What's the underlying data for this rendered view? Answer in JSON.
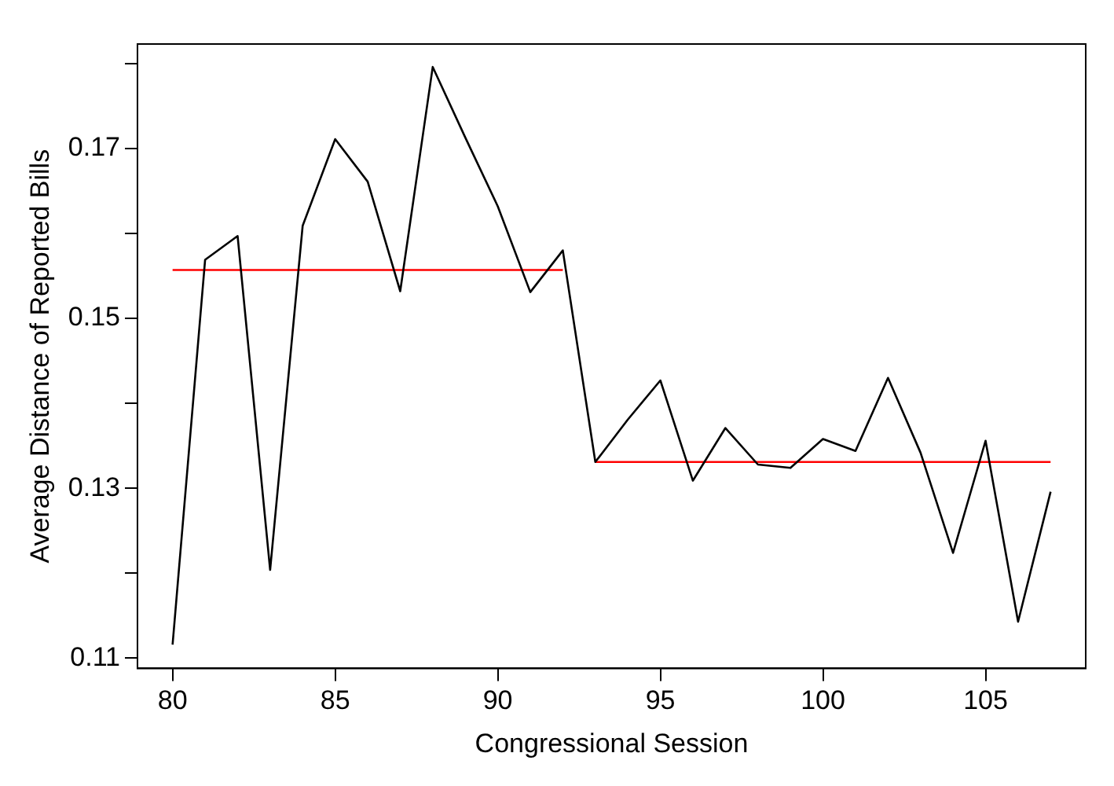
{
  "chart_data": {
    "type": "line",
    "xlabel": "Congressional Session",
    "ylabel": "Average Distance of Reported Bills",
    "xlim": [
      78.92,
      108.08
    ],
    "ylim": [
      0.1088,
      0.1823
    ],
    "xticks": [
      80,
      85,
      90,
      95,
      100,
      105
    ],
    "yticks": [
      0.11,
      {
        "value": 0.12,
        "label": null
      },
      0.13,
      {
        "value": 0.14,
        "label": null
      },
      0.15,
      {
        "value": 0.16,
        "label": null
      },
      0.17,
      {
        "value": 0.18,
        "label": null
      }
    ],
    "grid": false,
    "legend": false,
    "marker": "none",
    "line_style": "solid",
    "series": [
      {
        "color": "#000000",
        "x": [
          80,
          81,
          82,
          83,
          84,
          85,
          86,
          87,
          88,
          89,
          90,
          91,
          92,
          93,
          94,
          95,
          96,
          97,
          98,
          99,
          100,
          101,
          102,
          103,
          104,
          105,
          106,
          107
        ],
        "values": [
          0.1116,
          0.1569,
          0.1597,
          0.1204,
          0.1609,
          0.1711,
          0.1661,
          0.1532,
          0.1796,
          0.1713,
          0.1632,
          0.1531,
          0.158,
          0.1331,
          0.1381,
          0.1427,
          0.1309,
          0.1371,
          0.1328,
          0.1324,
          0.1358,
          0.1344,
          0.143,
          0.1342,
          0.1224,
          0.1356,
          0.1143,
          0.1296
        ]
      },
      {
        "color": "#ff0000",
        "x": [
          80,
          92
        ],
        "values": [
          0.1557,
          0.1557
        ]
      },
      {
        "color": "#ff0000",
        "x": [
          93,
          107
        ],
        "values": [
          0.1331,
          0.1331
        ]
      }
    ]
  }
}
